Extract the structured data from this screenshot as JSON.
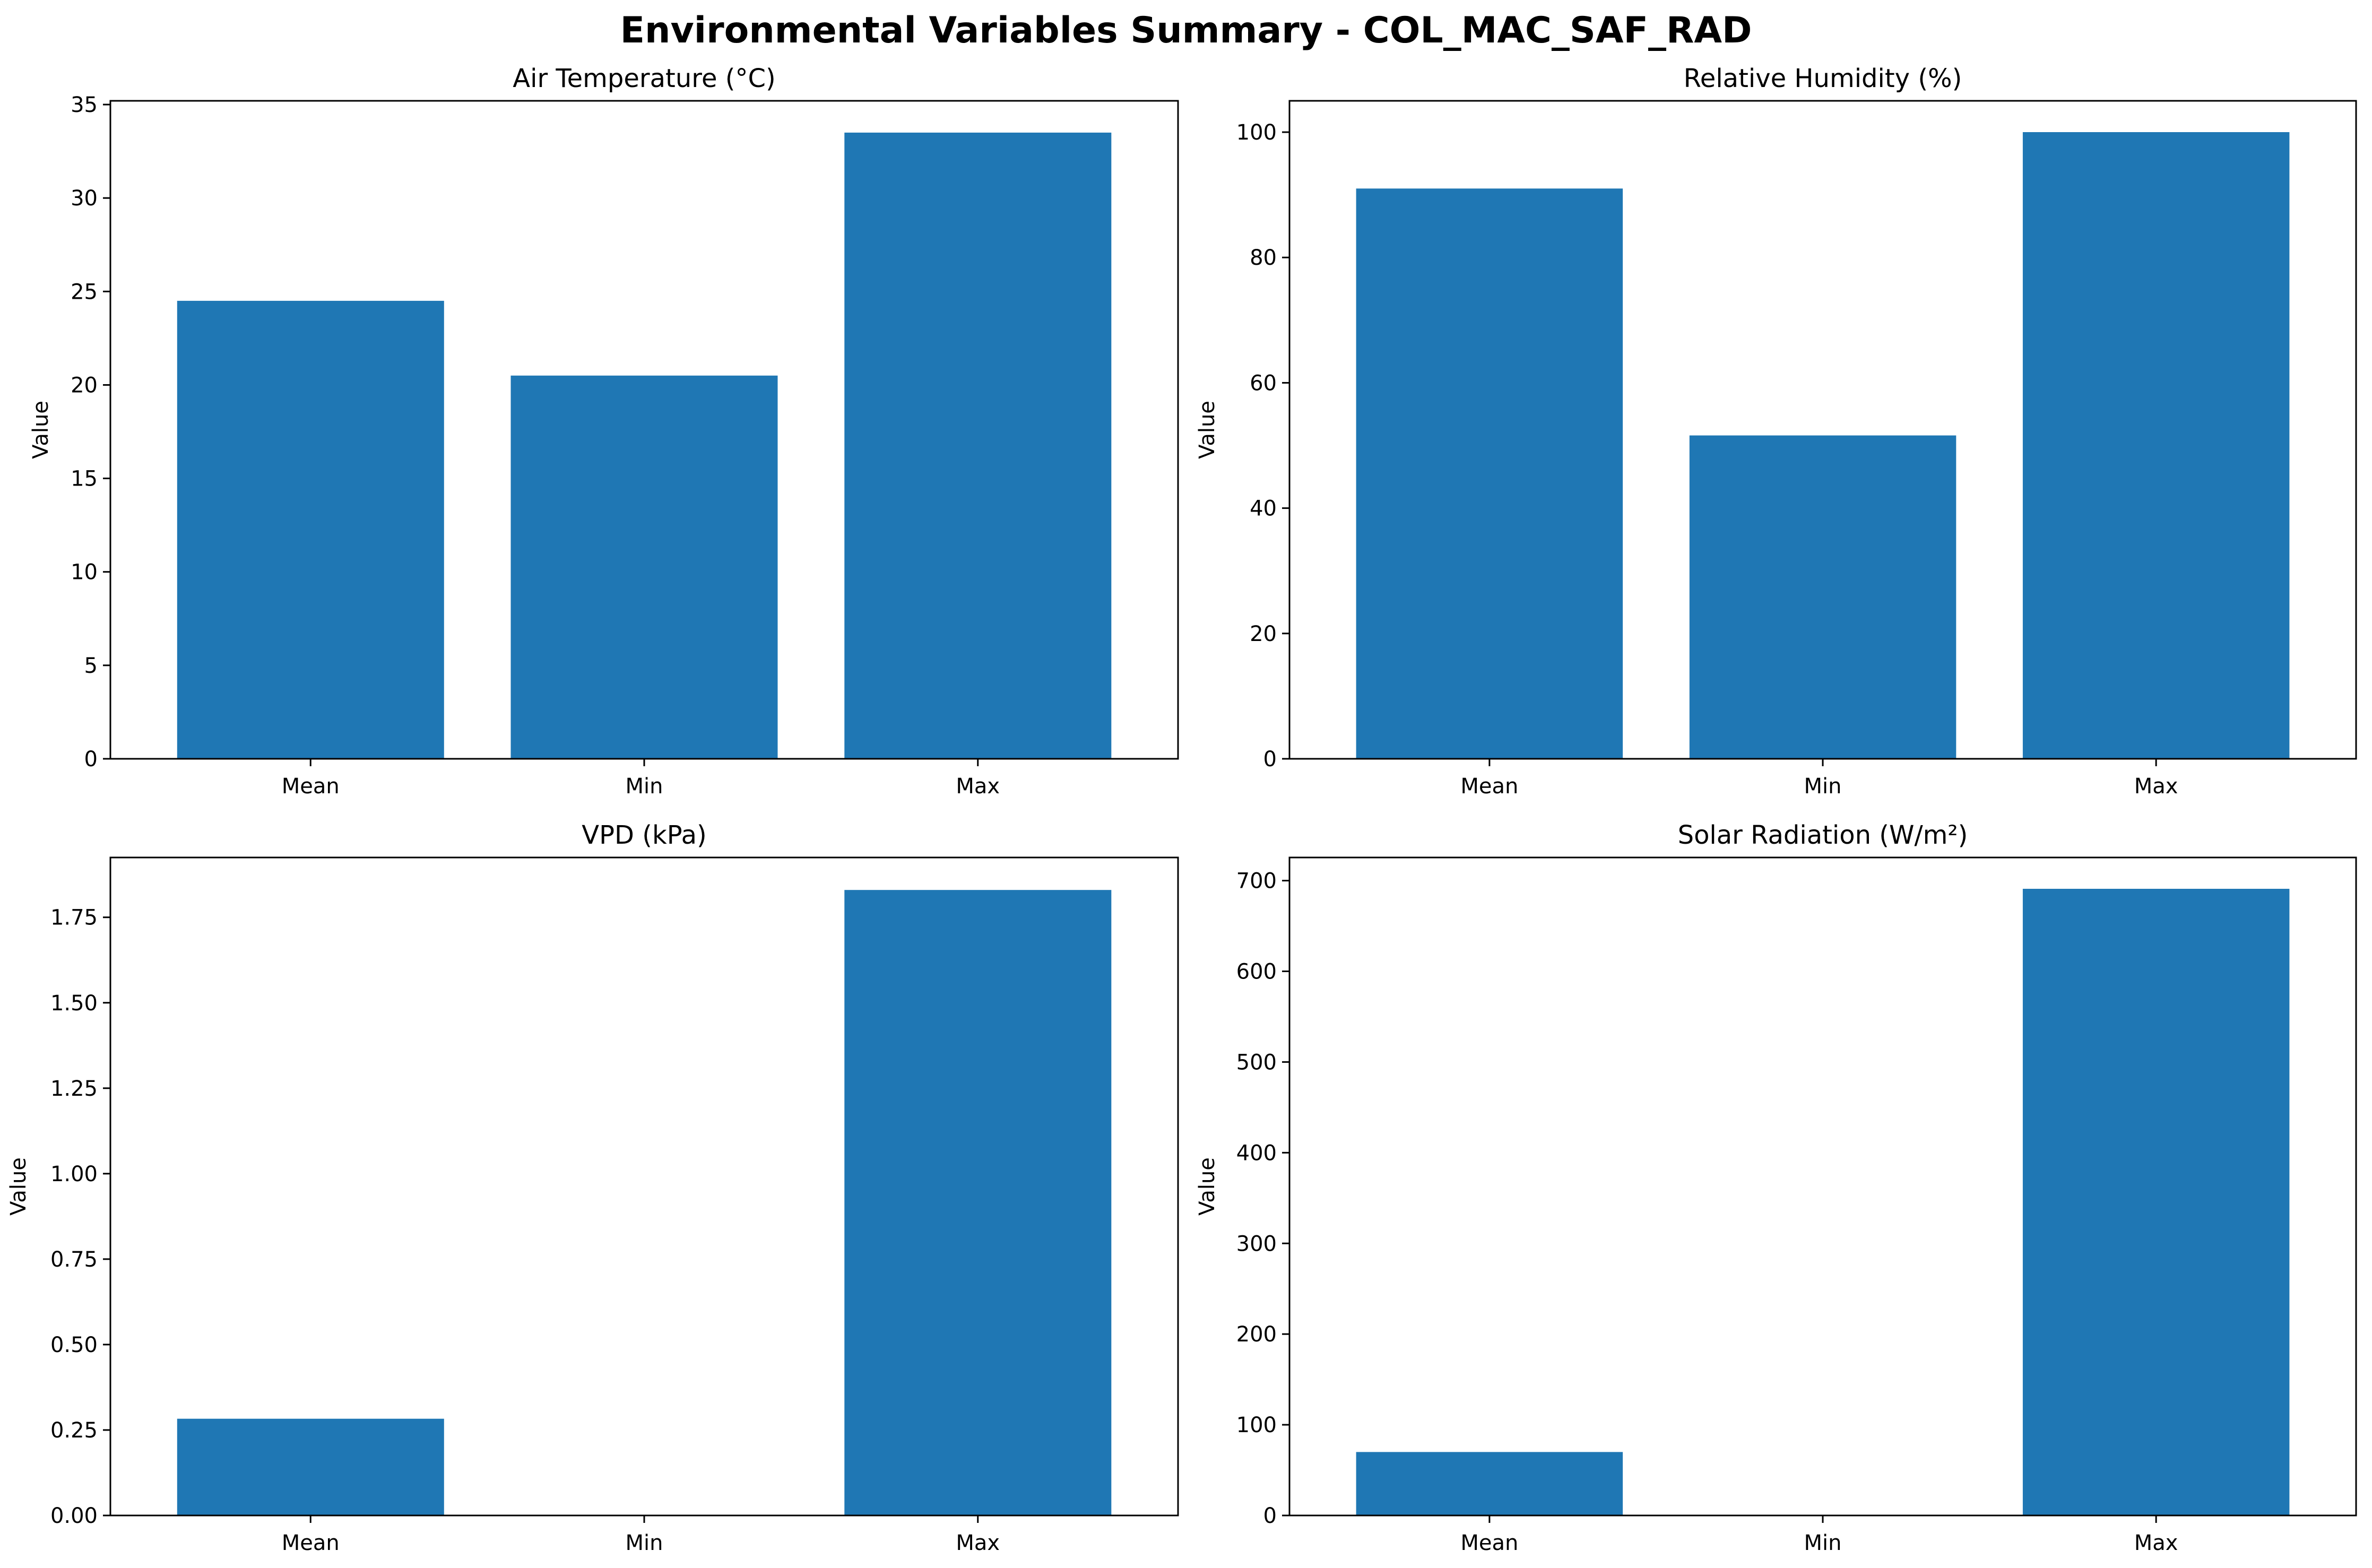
{
  "figure": {
    "title": "Environmental Variables Summary - COL_MAC_SAF_RAD",
    "bar_color": "#1f77b4"
  },
  "chart_data": [
    {
      "type": "bar",
      "title": "Air Temperature (°C)",
      "ylabel": "Value",
      "xlabel": "",
      "categories": [
        "Mean",
        "Min",
        "Max"
      ],
      "values": [
        24.5,
        20.5,
        33.5
      ],
      "ylim": [
        0,
        35.2
      ],
      "yticks": [
        0,
        5,
        10,
        15,
        20,
        25,
        30,
        35
      ],
      "ytick_labels": [
        "0",
        "5",
        "10",
        "15",
        "20",
        "25",
        "30",
        "35"
      ],
      "grid": false
    },
    {
      "type": "bar",
      "title": "Relative Humidity (%)",
      "ylabel": "Value",
      "xlabel": "",
      "categories": [
        "Mean",
        "Min",
        "Max"
      ],
      "values": [
        91.0,
        51.6,
        100.0
      ],
      "ylim": [
        0,
        105
      ],
      "yticks": [
        0,
        20,
        40,
        60,
        80,
        100
      ],
      "ytick_labels": [
        "0",
        "20",
        "40",
        "60",
        "80",
        "100"
      ],
      "grid": false
    },
    {
      "type": "bar",
      "title": "VPD (kPa)",
      "ylabel": "Value",
      "xlabel": "",
      "categories": [
        "Mean",
        "Min",
        "Max"
      ],
      "values": [
        0.283,
        0.0,
        1.83
      ],
      "ylim": [
        0,
        1.925
      ],
      "yticks": [
        0,
        0.25,
        0.5,
        0.75,
        1.0,
        1.25,
        1.5,
        1.75
      ],
      "ytick_labels": [
        "0.00",
        "0.25",
        "0.50",
        "0.75",
        "1.00",
        "1.25",
        "1.50",
        "1.75"
      ],
      "grid": false
    },
    {
      "type": "bar",
      "title": "Solar Radiation (W/m²)",
      "ylabel": "Value",
      "xlabel": "",
      "categories": [
        "Mean",
        "Min",
        "Max"
      ],
      "values": [
        70,
        0,
        691
      ],
      "ylim": [
        0,
        725.5
      ],
      "yticks": [
        0,
        100,
        200,
        300,
        400,
        500,
        600,
        700
      ],
      "ytick_labels": [
        "0",
        "100",
        "200",
        "300",
        "400",
        "500",
        "600",
        "700"
      ],
      "grid": false
    }
  ]
}
